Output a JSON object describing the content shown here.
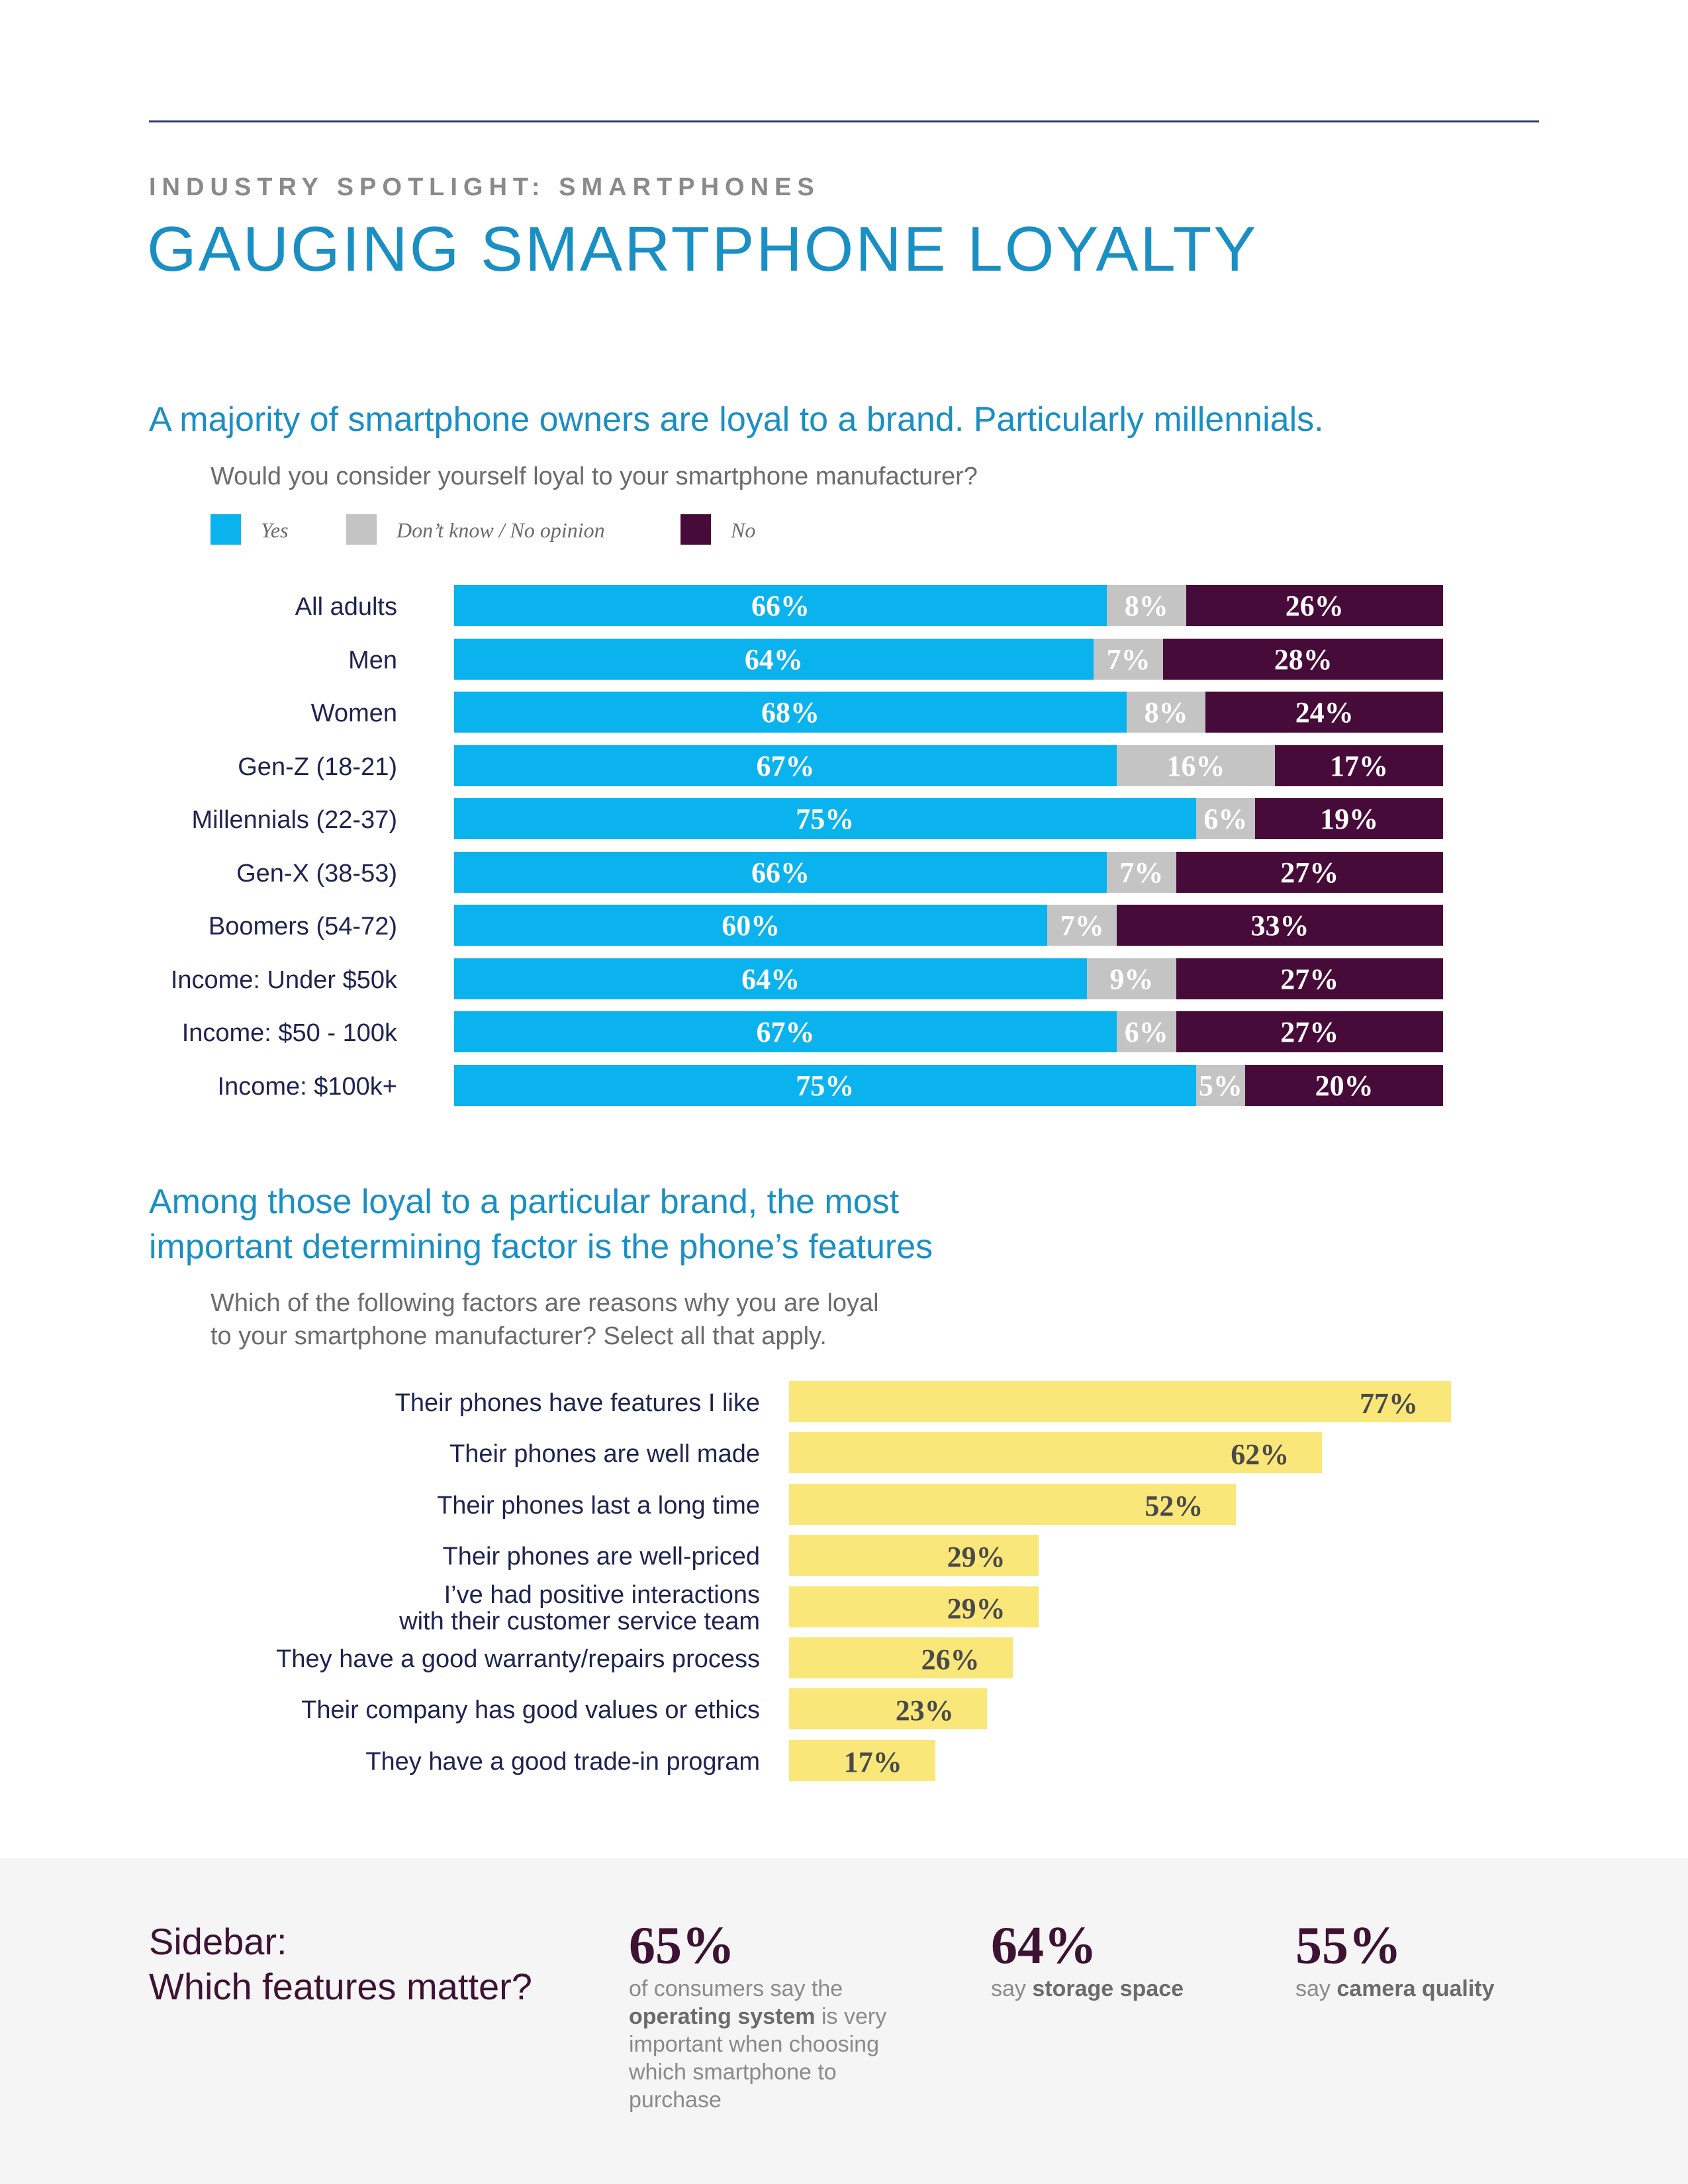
{
  "header": {
    "eyebrow": "INDUSTRY SPOTLIGHT: SMARTPHONES",
    "title": "GAUGING SMARTPHONE LOYALTY"
  },
  "colors": {
    "yes": "#0bb3ee",
    "dont_know": "#c4c4c4",
    "no": "#470b39",
    "factor_bar": "#fae77a",
    "heading": "#1a8fc4",
    "sidebar_accent": "#3d1233"
  },
  "section1": {
    "heading": "A majority of smartphone owners are loyal to a brand. Particularly millennials.",
    "question": "Would you consider yourself loyal to your smartphone manufacturer?"
  },
  "section2": {
    "heading_line1": "Among those loyal to a particular brand, the most",
    "heading_line2": "important determining factor is the phone’s features",
    "question_line1": "Which of the following factors are reasons why you are loyal",
    "question_line2": "to your smartphone manufacturer? Select all that apply."
  },
  "chart_data": [
    {
      "type": "bar",
      "orientation": "horizontal",
      "stacked": true,
      "categories": [
        "All adults",
        "Men",
        "Women",
        "Gen-Z (18-21)",
        "Millennials (22-37)",
        "Gen-X (38-53)",
        "Boomers (54-72)",
        "Income: Under $50k",
        "Income: $50 - 100k",
        "Income: $100k+"
      ],
      "series": [
        {
          "name": "Yes",
          "values": [
            66,
            64,
            68,
            67,
            75,
            66,
            60,
            64,
            67,
            75
          ]
        },
        {
          "name": "Don’t know / No opinion",
          "values": [
            8,
            7,
            8,
            16,
            6,
            7,
            7,
            9,
            6,
            5
          ]
        },
        {
          "name": "No",
          "values": [
            26,
            28,
            24,
            17,
            19,
            27,
            33,
            27,
            27,
            20
          ]
        }
      ],
      "legend": "top-left",
      "grid": false
    },
    {
      "type": "bar",
      "orientation": "horizontal",
      "categories": [
        "Their phones have features I like",
        "Their phones are well made",
        "Their phones last a long time",
        "Their phones are well-priced",
        "I’ve had positive interactions with their customer service team",
        "They have a good warranty/repairs process",
        "Their company has good values or ethics",
        "They have a good trade-in program"
      ],
      "values": [
        77,
        62,
        52,
        29,
        29,
        26,
        23,
        17
      ],
      "grid": false
    }
  ],
  "sidebar": {
    "title_line1": "Sidebar:",
    "title_line2": "Which features matter?",
    "stats": [
      {
        "value": "65%",
        "pre": "of consumers say the",
        "bold": "operating system",
        "post": "is very important when choosing which smartphone to purchase"
      },
      {
        "value": "64%",
        "pre": "say",
        "bold": "storage space",
        "post": ""
      },
      {
        "value": "55%",
        "pre": "say",
        "bold": "camera quality",
        "post": ""
      }
    ]
  }
}
